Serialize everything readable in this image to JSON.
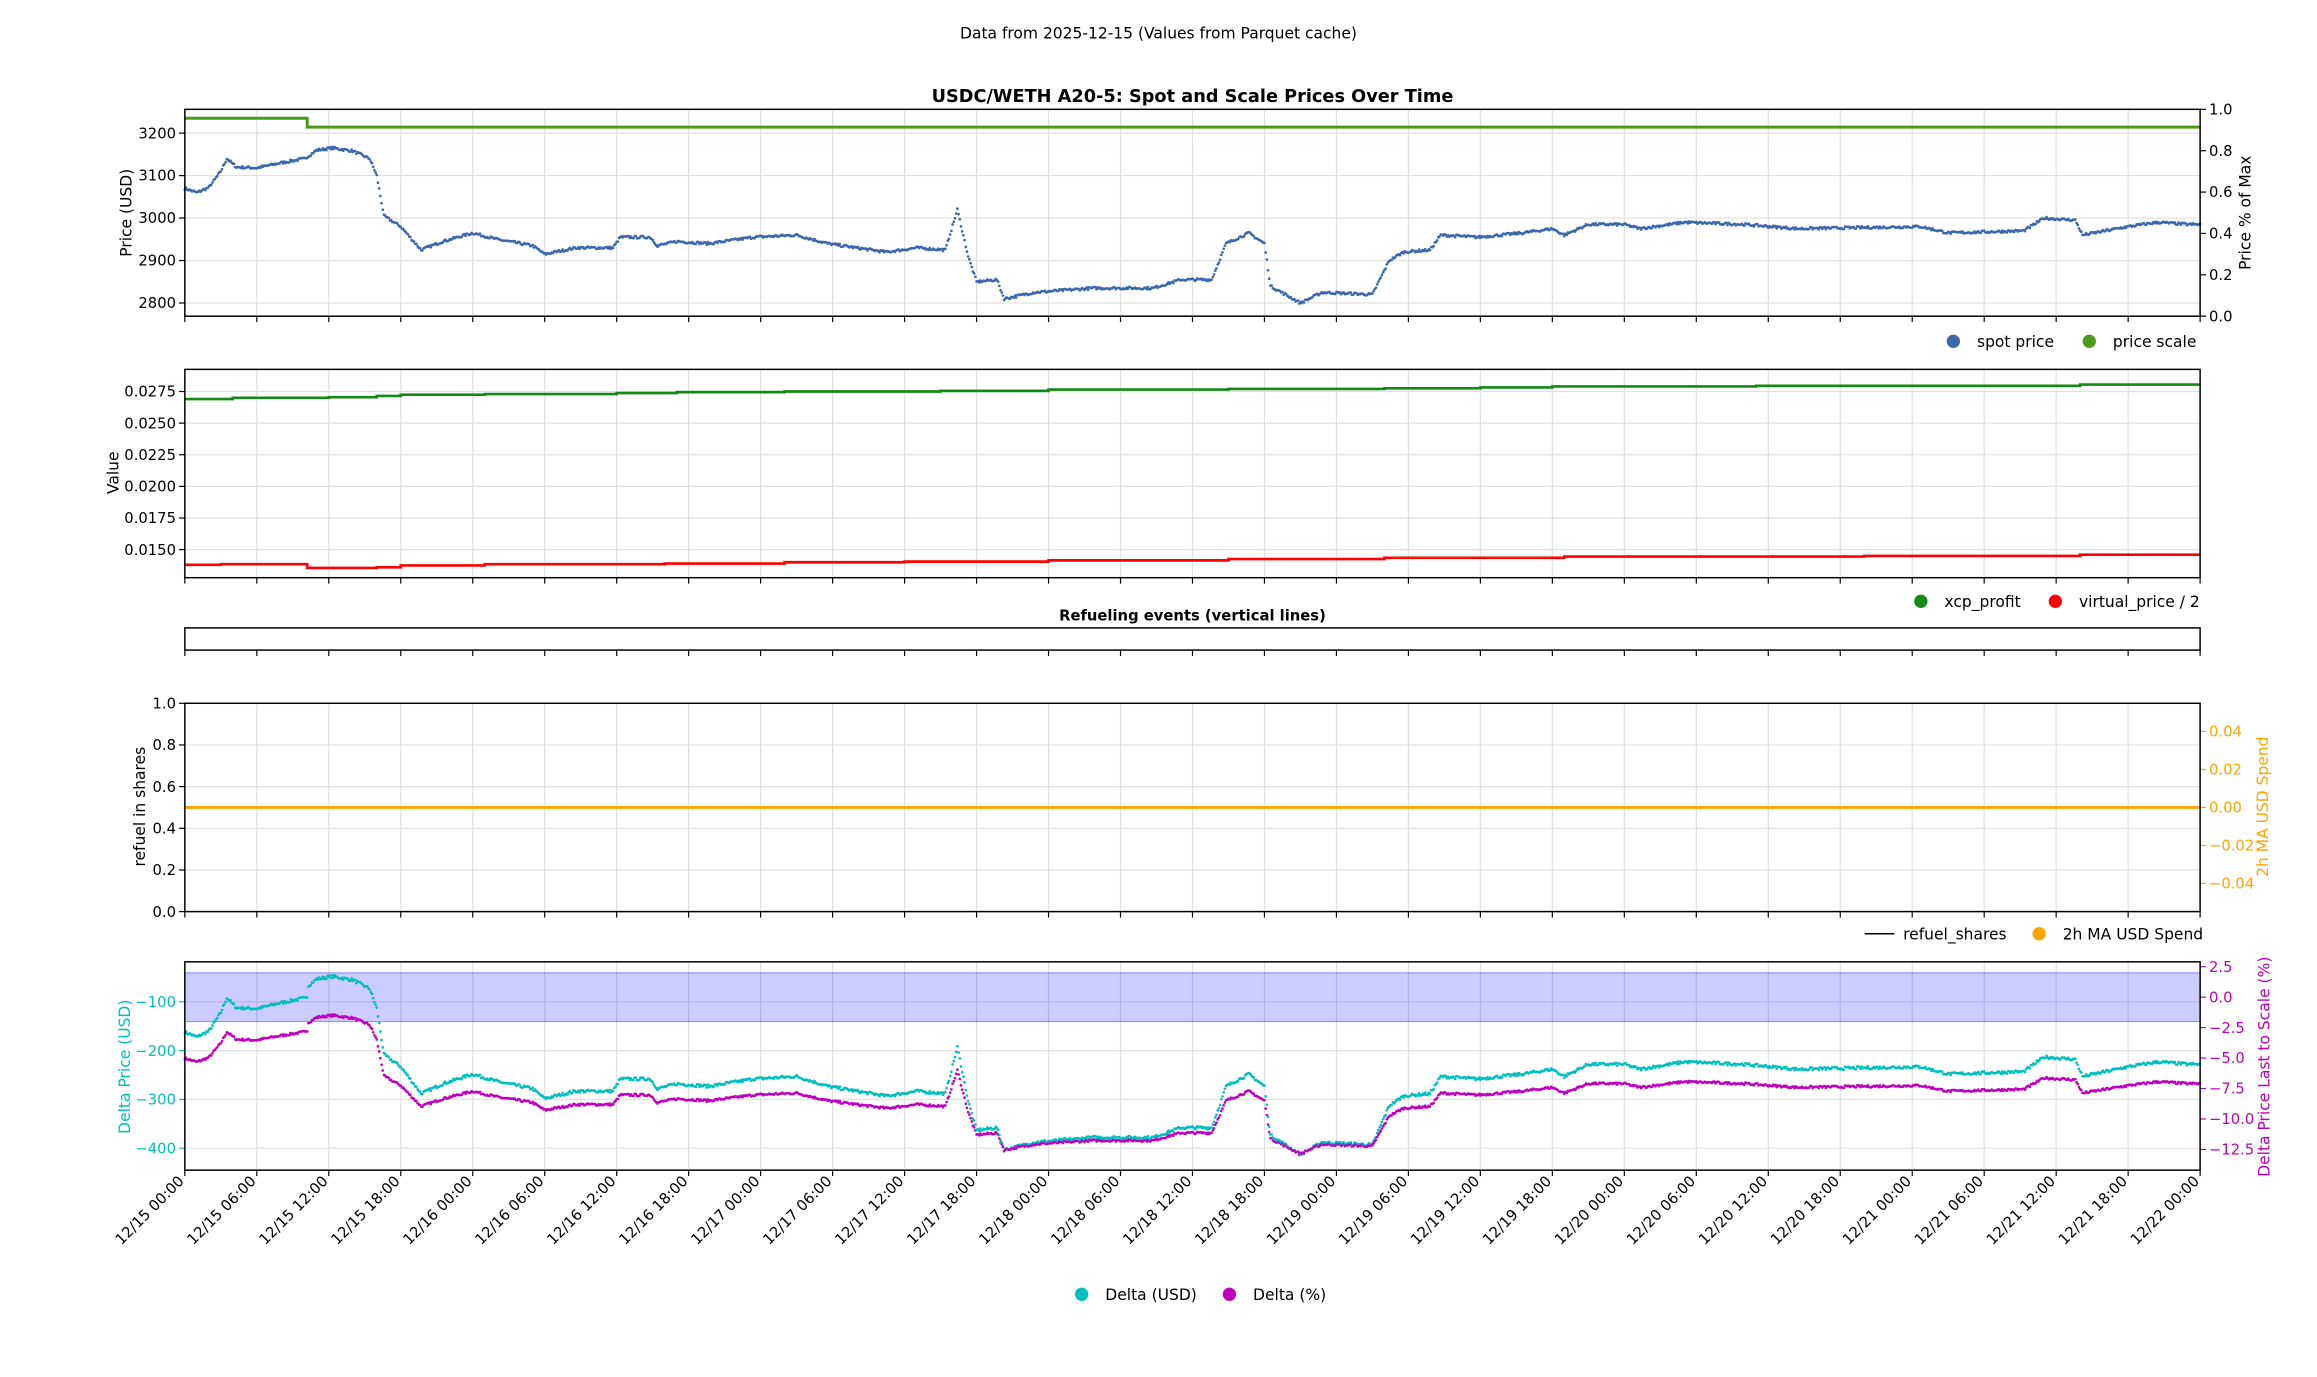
{
  "suptitle": "Data from 2025-12-15 (Values from Parquet cache)",
  "chart_data": [
    {
      "type": "scatter",
      "title": "USDC/WETH A20-5: Spot and Scale Prices Over Time",
      "ylabel": "Price (USD)",
      "ylabel_right": "Price % of Max",
      "ylim": [
        2769,
        3256
      ],
      "ylim_right": [
        0,
        1
      ],
      "yticks": [
        "2800",
        "2900",
        "3000",
        "3100",
        "3200"
      ],
      "yticks_right": [
        "0.0",
        "0.2",
        "0.4",
        "0.6",
        "0.8",
        "1.0"
      ],
      "legend": [
        "spot price",
        "price scale"
      ],
      "legend_position": "below-right",
      "x_unit": "hours since 12/15 00:00",
      "series": [
        {
          "name": "spot price",
          "color": "#3b67ad",
          "points": [
            [
              0,
              3070
            ],
            [
              1,
              3060
            ],
            [
              2,
              3072
            ],
            [
              3,
              3110
            ],
            [
              3.5,
              3140
            ],
            [
              4.3,
              3120
            ],
            [
              6,
              3118
            ],
            [
              8,
              3130
            ],
            [
              10,
              3140
            ],
            [
              11,
              3160
            ],
            [
              12.3,
              3165
            ],
            [
              14,
              3158
            ],
            [
              15.4,
              3140
            ],
            [
              16,
              3100
            ],
            [
              16.6,
              3005
            ],
            [
              18,
              2980
            ],
            [
              19.7,
              2925
            ],
            [
              21.5,
              2945
            ],
            [
              24,
              2965
            ],
            [
              26,
              2950
            ],
            [
              29,
              2935
            ],
            [
              30,
              2915
            ],
            [
              32.6,
              2930
            ],
            [
              35.7,
              2930
            ],
            [
              36.3,
              2955
            ],
            [
              38.8,
              2955
            ],
            [
              39.4,
              2935
            ],
            [
              41,
              2945
            ],
            [
              43.7,
              2940
            ],
            [
              47.4,
              2955
            ],
            [
              51,
              2960
            ],
            [
              53.6,
              2940
            ],
            [
              56,
              2930
            ],
            [
              58.5,
              2920
            ],
            [
              61,
              2930
            ],
            [
              63.4,
              2925
            ],
            [
              64.4,
              3020
            ],
            [
              65.3,
              2910
            ],
            [
              66,
              2850
            ],
            [
              67.7,
              2855
            ],
            [
              68.3,
              2810
            ],
            [
              70.8,
              2825
            ],
            [
              75.7,
              2835
            ],
            [
              80.7,
              2835
            ],
            [
              83,
              2855
            ],
            [
              85.6,
              2855
            ],
            [
              86.8,
              2940
            ],
            [
              88.7,
              2965
            ],
            [
              90,
              2940
            ],
            [
              90.5,
              2840
            ],
            [
              93,
              2800
            ],
            [
              94.8,
              2825
            ],
            [
              99,
              2820
            ],
            [
              100.4,
              2900
            ],
            [
              101.6,
              2920
            ],
            [
              103.8,
              2925
            ],
            [
              104.7,
              2960
            ],
            [
              107.8,
              2955
            ],
            [
              111.5,
              2965
            ],
            [
              114,
              2975
            ],
            [
              115,
              2960
            ],
            [
              117,
              2985
            ],
            [
              120,
              2985
            ],
            [
              121.3,
              2975
            ],
            [
              125,
              2990
            ],
            [
              130,
              2985
            ],
            [
              134.4,
              2975
            ],
            [
              144.7,
              2980
            ],
            [
              147,
              2965
            ],
            [
              153.3,
              2970
            ],
            [
              155,
              3000
            ],
            [
              157.6,
              2995
            ],
            [
              158.2,
              2960
            ],
            [
              162,
              2980
            ],
            [
              164.5,
              2990
            ],
            [
              167,
              2985
            ],
            [
              168,
              2985
            ]
          ]
        },
        {
          "name": "price scale",
          "color": "#4e9a1b",
          "axis": "right",
          "points": [
            [
              0,
              0.957
            ],
            [
              10.2,
              0.957
            ],
            [
              10.2,
              0.914
            ],
            [
              168,
              0.914
            ]
          ]
        }
      ]
    },
    {
      "type": "line",
      "ylabel": "Value",
      "ylim": [
        0.01278,
        0.02925
      ],
      "yticks": [
        "0.0150",
        "0.0175",
        "0.0200",
        "0.0225",
        "0.0250",
        "0.0275"
      ],
      "legend": [
        "xcp_profit",
        "virtual_price / 2"
      ],
      "legend_position": "below-right",
      "series": [
        {
          "name": "xcp_profit",
          "color": "#138a13",
          "points": [
            [
              0,
              0.0269
            ],
            [
              4,
              0.027
            ],
            [
              12,
              0.02705
            ],
            [
              16,
              0.02715
            ],
            [
              18,
              0.02725
            ],
            [
              25,
              0.0273
            ],
            [
              36,
              0.02738
            ],
            [
              41,
              0.02745
            ],
            [
              50,
              0.0275
            ],
            [
              63,
              0.02755
            ],
            [
              72,
              0.02765
            ],
            [
              87,
              0.0277
            ],
            [
              100,
              0.02775
            ],
            [
              108,
              0.02782
            ],
            [
              114,
              0.0279
            ],
            [
              131,
              0.02795
            ],
            [
              158,
              0.02805
            ],
            [
              168,
              0.02805
            ]
          ]
        },
        {
          "name": "virtual_price / 2",
          "color": "#ff0000",
          "points": [
            [
              0,
              0.0138
            ],
            [
              3,
              0.01385
            ],
            [
              10.2,
              0.01385
            ],
            [
              10.2,
              0.01355
            ],
            [
              16,
              0.0136
            ],
            [
              18,
              0.01375
            ],
            [
              25,
              0.01385
            ],
            [
              40,
              0.0139
            ],
            [
              50,
              0.014
            ],
            [
              60,
              0.01405
            ],
            [
              72,
              0.01415
            ],
            [
              87,
              0.01425
            ],
            [
              100,
              0.01435
            ],
            [
              115,
              0.01445
            ],
            [
              140,
              0.0145
            ],
            [
              158,
              0.0146
            ],
            [
              168,
              0.0146
            ]
          ]
        }
      ]
    },
    {
      "type": "line",
      "title": "Refueling events (vertical lines)",
      "series": []
    },
    {
      "type": "line",
      "ylabel": "refuel in shares",
      "ylabel_right": "2h MA USD Spend",
      "ylim": [
        0,
        1
      ],
      "ylim_right": [
        -0.0548,
        0.0548
      ],
      "yticks": [
        "0.0",
        "0.2",
        "0.4",
        "0.6",
        "0.8",
        "1.0"
      ],
      "yticks_right": [
        "−0.04",
        "−0.02",
        "0.00",
        "0.02",
        "0.04"
      ],
      "legend": [
        "refuel_shares",
        "2h MA USD Spend"
      ],
      "legend_position": "below-right",
      "series": [
        {
          "name": "refuel_shares",
          "color": "#000000",
          "points": []
        },
        {
          "name": "2h MA USD Spend",
          "color": "#ffa500",
          "axis": "right",
          "points": [
            [
              0,
              0
            ],
            [
              168,
              0
            ]
          ]
        }
      ]
    },
    {
      "type": "scatter",
      "ylabel": "Delta Price (USD)",
      "ylabel_right": "Delta Price Last to Scale (%)",
      "ylim": [
        -445,
        -18
      ],
      "ylim_right": [
        -14.2,
        2.9
      ],
      "yticks": [
        "−400",
        "−300",
        "−200",
        "−100"
      ],
      "yticks_right": [
        "−12.5",
        "−10.0",
        "−7.5",
        "−5.0",
        "−2.5",
        "0.0",
        "2.5"
      ],
      "band_percent": [
        -2,
        2
      ],
      "band_color": "rgba(0,0,255,0.2)",
      "scale_price_usd": [
        [
          0,
          3232
        ],
        [
          10.2,
          3232
        ],
        [
          10.2,
          3213
        ],
        [
          168,
          3213
        ]
      ],
      "legend": [
        "Delta (USD)",
        "Delta (%)"
      ],
      "legend_position": "below-center",
      "series": [
        {
          "name": "Delta (USD)",
          "color": "#00bfbf",
          "derived": "spot price − scale price"
        },
        {
          "name": "Delta (%)",
          "color": "#bf00bf",
          "axis": "right",
          "derived": "(spot − scale) / scale × 100"
        }
      ]
    }
  ],
  "x_axis": {
    "range_hours": [
      0,
      168
    ],
    "tick_labels": [
      "12/15 00:00",
      "12/15 06:00",
      "12/15 12:00",
      "12/15 18:00",
      "12/16 00:00",
      "12/16 06:00",
      "12/16 12:00",
      "12/16 18:00",
      "12/17 00:00",
      "12/17 06:00",
      "12/17 12:00",
      "12/17 18:00",
      "12/18 00:00",
      "12/18 06:00",
      "12/18 12:00",
      "12/18 18:00",
      "12/19 00:00",
      "12/19 06:00",
      "12/19 12:00",
      "12/19 18:00",
      "12/20 00:00",
      "12/20 06:00",
      "12/20 12:00",
      "12/20 18:00",
      "12/21 00:00",
      "12/21 06:00",
      "12/21 12:00",
      "12/21 18:00",
      "12/22 00:00"
    ]
  }
}
